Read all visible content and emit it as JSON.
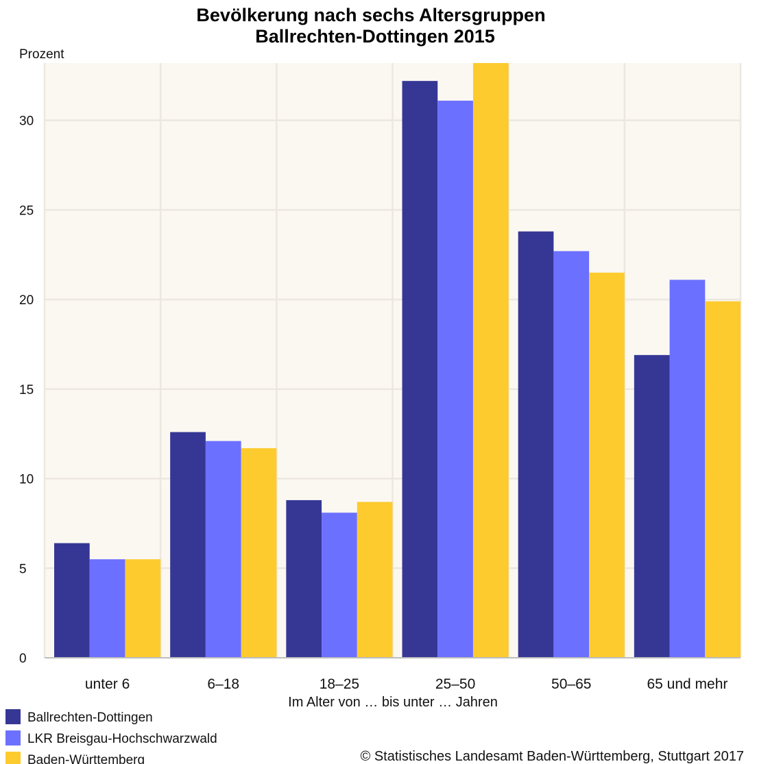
{
  "chart_data": {
    "type": "bar",
    "title": "Bevölkerung nach sechs Altersgruppen",
    "subtitle": "Ballrechten-Dottingen 2015",
    "ylabel": "Prozent",
    "xlabel": "Im Alter von … bis unter … Jahren",
    "ylim": [
      0,
      33.2
    ],
    "yticks": [
      0,
      5,
      10,
      15,
      20,
      25,
      30
    ],
    "grid": true,
    "legend_position": "bottom-left",
    "categories": [
      "unter 6",
      "6–18",
      "18–25",
      "25–50",
      "50–65",
      "65 und mehr"
    ],
    "series": [
      {
        "name": "Ballrechten-Dottingen",
        "color": "#363795",
        "values": [
          6.4,
          12.6,
          8.8,
          32.2,
          23.8,
          16.9
        ]
      },
      {
        "name": "LKR Breisgau-Hochschwarzwald",
        "color": "#6c70fe",
        "values": [
          5.5,
          12.1,
          8.1,
          31.1,
          22.7,
          21.1
        ]
      },
      {
        "name": "Baden-Württemberg",
        "color": "#fdcb2e",
        "values": [
          5.5,
          11.7,
          8.7,
          33.5,
          21.5,
          19.9
        ]
      }
    ],
    "source": "© Statistisches Landesamt Baden-Württemberg, Stuttgart 2017"
  },
  "colors": {
    "plot_background": "#fbf8f2",
    "grid": "#ece8df",
    "axis": "#bdbdbd"
  }
}
